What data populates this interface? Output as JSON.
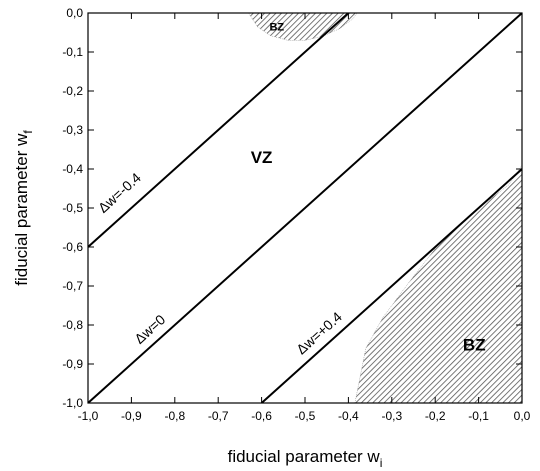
{
  "chart_data": {
    "type": "line",
    "xlabel": "fiducial parameter w",
    "xlabel_sub": "i",
    "ylabel": "fiducial parameter w",
    "ylabel_sub": "f",
    "xlim": [
      -1.0,
      0.0
    ],
    "ylim": [
      -1.0,
      0.0
    ],
    "x_ticks": [
      -1.0,
      -0.9,
      -0.8,
      -0.7,
      -0.6,
      -0.5,
      -0.4,
      -0.3,
      -0.2,
      -0.1,
      0.0
    ],
    "x_tick_labels": [
      "-1,0",
      "-0,9",
      "-0,8",
      "-0,7",
      "-0,6",
      "-0,5",
      "-0,4",
      "-0,3",
      "-0,2",
      "-0,1",
      "0,0"
    ],
    "y_ticks": [
      0.0,
      -0.1,
      -0.2,
      -0.3,
      -0.4,
      -0.5,
      -0.6,
      -0.7,
      -0.8,
      -0.9,
      -1.0
    ],
    "y_tick_labels": [
      "0,0",
      "-0,1",
      "-0,2",
      "-0,3",
      "-0,4",
      "-0,5",
      "-0,6",
      "-0,7",
      "-0,8",
      "-0,9",
      "-1,0"
    ],
    "grid": false,
    "series": [
      {
        "label": "Δw=-0.4",
        "x": [
          -1.0,
          -0.4
        ],
        "y": [
          -0.6,
          0.0
        ],
        "label_at": [
          -0.92,
          -0.47
        ]
      },
      {
        "label": "Δw=0",
        "x": [
          -1.0,
          0.0
        ],
        "y": [
          -1.0,
          0.0
        ],
        "label_at": [
          -0.85,
          -0.82
        ]
      },
      {
        "label": "Δw=+0.4",
        "x": [
          -0.6,
          0.0
        ],
        "y": [
          -1.0,
          -0.4
        ],
        "label_at": [
          -0.46,
          -0.83
        ]
      }
    ],
    "regions": [
      {
        "label": "BZ",
        "label_at": [
          -0.565,
          -0.045
        ],
        "label_size": 11,
        "boundary": [
          [
            -0.63,
            0.0
          ],
          [
            -0.61,
            -0.035
          ],
          [
            -0.58,
            -0.058
          ],
          [
            -0.54,
            -0.07
          ],
          [
            -0.5,
            -0.07
          ],
          [
            -0.46,
            -0.06
          ],
          [
            -0.42,
            -0.04
          ],
          [
            -0.39,
            -0.015
          ],
          [
            -0.38,
            0.0
          ]
        ]
      },
      {
        "label": "VZ",
        "label_at": [
          -0.6,
          -0.385
        ],
        "label_size": 17,
        "boundary": []
      },
      {
        "label": "BZ",
        "label_at": [
          -0.11,
          -0.865
        ],
        "label_size": 17,
        "boundary": [
          [
            -0.385,
            -1.0
          ],
          [
            -0.36,
            -0.86
          ],
          [
            -0.32,
            -0.78
          ],
          [
            -0.26,
            -0.69
          ],
          [
            -0.19,
            -0.59
          ],
          [
            -0.1,
            -0.5
          ],
          [
            -0.03,
            -0.44
          ],
          [
            0.0,
            -0.39
          ],
          [
            0.0,
            -1.0
          ]
        ]
      }
    ]
  }
}
